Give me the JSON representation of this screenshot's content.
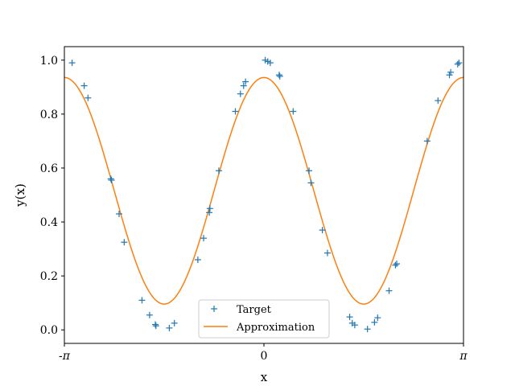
{
  "chart_data": {
    "type": "line",
    "title": "",
    "xlabel": "x",
    "ylabel": "y(x)",
    "xlim": [
      -3.14159,
      3.14159
    ],
    "ylim": [
      -0.05,
      1.05
    ],
    "x_ticks": [
      {
        "value": -3.14159,
        "label": "-π"
      },
      {
        "value": 0,
        "label": "0"
      },
      {
        "value": 3.14159,
        "label": "π"
      }
    ],
    "y_ticks": [
      {
        "value": 0.0,
        "label": "0.0"
      },
      {
        "value": 0.2,
        "label": "0.2"
      },
      {
        "value": 0.4,
        "label": "0.4"
      },
      {
        "value": 0.6,
        "label": "0.6"
      },
      {
        "value": 0.8,
        "label": "0.8"
      },
      {
        "value": 1.0,
        "label": "1.0"
      }
    ],
    "grid": false,
    "legend_position": "bottom-center",
    "series": [
      {
        "name": "Target",
        "kind": "scatter",
        "marker": "plus",
        "color": "#1f77b4",
        "points": [
          [
            -3.02,
            0.99
          ],
          [
            -2.83,
            0.905
          ],
          [
            -2.77,
            0.86
          ],
          [
            -2.41,
            0.56
          ],
          [
            -2.4,
            0.555
          ],
          [
            -2.28,
            0.43
          ],
          [
            -2.2,
            0.325
          ],
          [
            -1.92,
            0.11
          ],
          [
            -1.8,
            0.055
          ],
          [
            -1.71,
            0.02
          ],
          [
            -1.7,
            0.015
          ],
          [
            -1.49,
            0.007
          ],
          [
            -1.41,
            0.025
          ],
          [
            -1.04,
            0.26
          ],
          [
            -0.95,
            0.34
          ],
          [
            -0.86,
            0.435
          ],
          [
            -0.85,
            0.45
          ],
          [
            -0.71,
            0.59
          ],
          [
            -0.45,
            0.81
          ],
          [
            -0.37,
            0.875
          ],
          [
            -0.32,
            0.905
          ],
          [
            -0.29,
            0.92
          ],
          [
            0.02,
            1.0
          ],
          [
            0.06,
            0.995
          ],
          [
            0.1,
            0.99
          ],
          [
            0.24,
            0.945
          ],
          [
            0.25,
            0.94
          ],
          [
            0.46,
            0.81
          ],
          [
            0.71,
            0.59
          ],
          [
            0.74,
            0.545
          ],
          [
            0.92,
            0.37
          ],
          [
            1.0,
            0.285
          ],
          [
            1.35,
            0.048
          ],
          [
            1.39,
            0.025
          ],
          [
            1.43,
            0.018
          ],
          [
            1.63,
            0.003
          ],
          [
            1.74,
            0.028
          ],
          [
            1.79,
            0.045
          ],
          [
            1.97,
            0.145
          ],
          [
            2.07,
            0.24
          ],
          [
            2.09,
            0.245
          ],
          [
            2.57,
            0.7
          ],
          [
            2.74,
            0.85
          ],
          [
            2.92,
            0.945
          ],
          [
            2.94,
            0.955
          ],
          [
            3.05,
            0.985
          ],
          [
            3.07,
            0.99
          ]
        ]
      },
      {
        "name": "Approximation",
        "kind": "line",
        "color": "#ff7f0e",
        "formula": "0.5156 + 0.42*cos(2x)"
      }
    ]
  }
}
